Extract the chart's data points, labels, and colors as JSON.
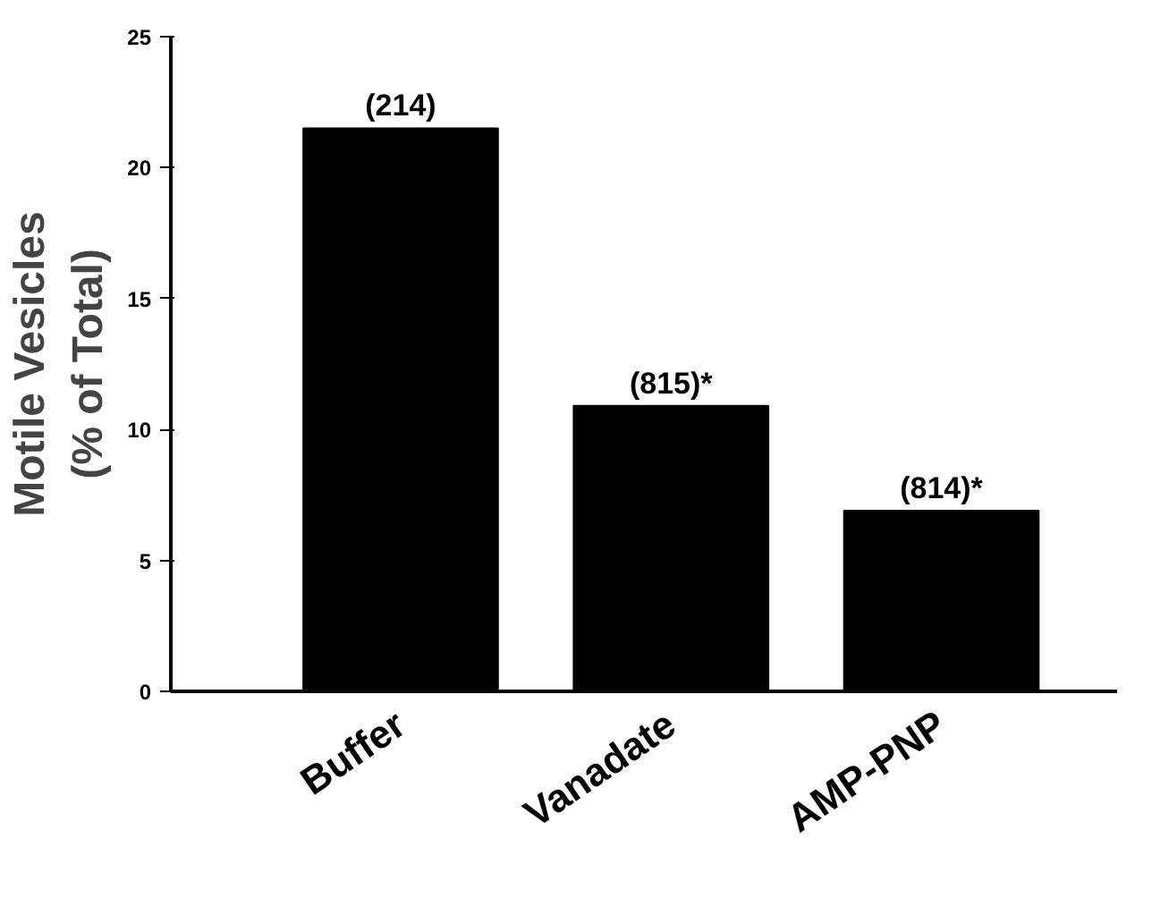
{
  "chart_data": {
    "type": "bar",
    "ylabel": "Motile Vesicles\n(% of Total)",
    "categories": [
      "Buffer",
      "Vanadate",
      "AMP-PNP"
    ],
    "values": [
      21.5,
      10.9,
      6.9
    ],
    "annotations": [
      {
        "text": "(214)",
        "x": "Buffer",
        "y": 21.5
      },
      {
        "text": "(815)*",
        "x": "Vanadate",
        "y": 10.9
      },
      {
        "text": "(814)*",
        "x": "AMP-PNP",
        "y": 6.9
      }
    ],
    "color": "#000000",
    "ylim": [
      0,
      25
    ],
    "yticks": [
      0,
      5,
      10,
      15,
      20,
      25
    ],
    "grid": false
  }
}
